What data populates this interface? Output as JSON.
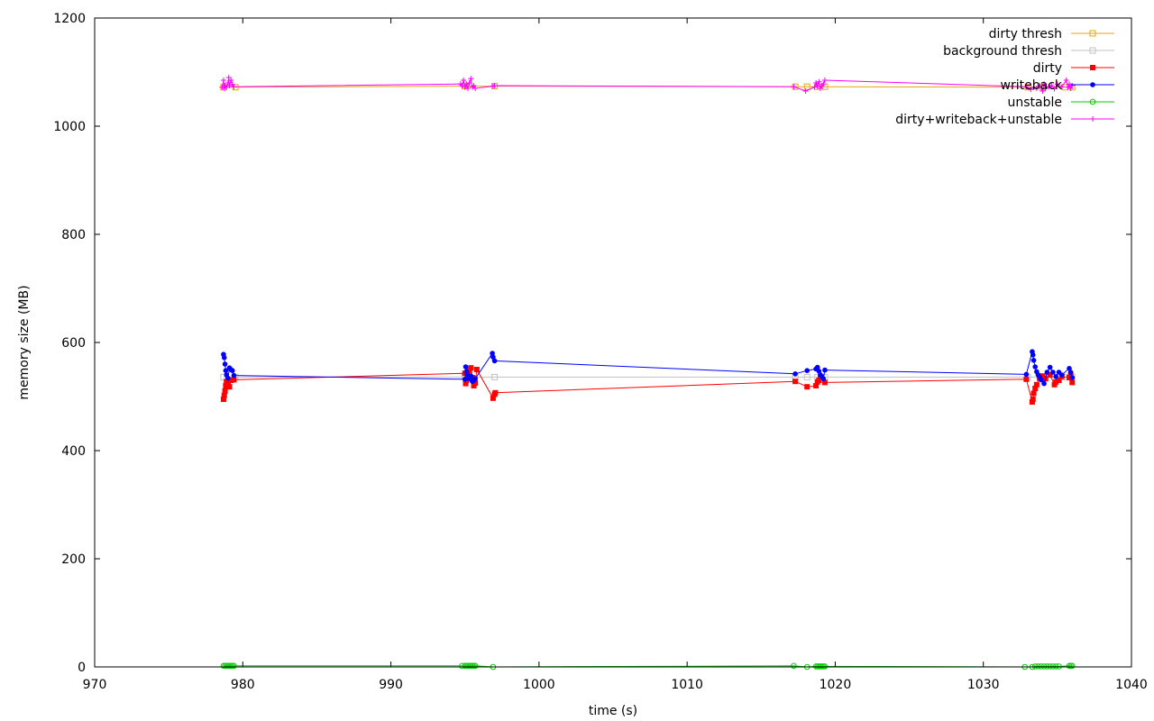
{
  "chart_data": {
    "type": "line",
    "xlabel": "time (s)",
    "ylabel": "memory size (MB)",
    "xlim": [
      970,
      1040
    ],
    "ylim": [
      0,
      1200
    ],
    "xticks": [
      970,
      980,
      990,
      1000,
      1010,
      1020,
      1030,
      1040
    ],
    "yticks": [
      0,
      200,
      400,
      600,
      800,
      1000,
      1200
    ],
    "grid": false,
    "legend_position": "top-right",
    "series": [
      {
        "name": "dirty thresh",
        "color": "#e6a317",
        "marker": "square-open",
        "points": [
          [
            978.7,
            1072
          ],
          [
            979.5,
            1072
          ],
          [
            995,
            1074
          ],
          [
            997,
            1074
          ],
          [
            1017.3,
            1073
          ],
          [
            1018.1,
            1073
          ],
          [
            1018.8,
            1073
          ],
          [
            1019.3,
            1073
          ],
          [
            1033,
            1072
          ],
          [
            1034,
            1072
          ],
          [
            1035.5,
            1072
          ],
          [
            1036,
            1072
          ]
        ]
      },
      {
        "name": "background thresh",
        "color": "#c0c0c0",
        "marker": "square-open",
        "points": [
          [
            978.7,
            536
          ],
          [
            979.5,
            536
          ],
          [
            995,
            536
          ],
          [
            997,
            536
          ],
          [
            1017.3,
            536
          ],
          [
            1018.1,
            536
          ],
          [
            1018.8,
            536
          ],
          [
            1019.3,
            536
          ],
          [
            1033,
            536
          ],
          [
            1034,
            536
          ],
          [
            1035.5,
            536
          ],
          [
            1036,
            536
          ]
        ]
      },
      {
        "name": "dirty",
        "color": "#ff0000",
        "marker": "square",
        "points": [
          [
            978.7,
            495
          ],
          [
            978.75,
            502
          ],
          [
            978.8,
            510
          ],
          [
            978.85,
            520
          ],
          [
            978.9,
            528
          ],
          [
            979.0,
            524
          ],
          [
            979.1,
            518
          ],
          [
            979.2,
            530
          ],
          [
            979.4,
            531
          ],
          [
            995,
            543
          ],
          [
            995.05,
            524
          ],
          [
            995.1,
            530
          ],
          [
            995.2,
            537
          ],
          [
            995.3,
            548
          ],
          [
            995.4,
            553
          ],
          [
            995.5,
            535
          ],
          [
            995.6,
            520
          ],
          [
            995.7,
            525
          ],
          [
            995.8,
            550
          ],
          [
            996.9,
            497
          ],
          [
            997.0,
            504
          ],
          [
            997.05,
            507
          ],
          [
            1017.3,
            528
          ],
          [
            1018.1,
            518
          ],
          [
            1018.7,
            520
          ],
          [
            1018.8,
            527
          ],
          [
            1018.9,
            530
          ],
          [
            1019.0,
            535
          ],
          [
            1019.3,
            526
          ],
          [
            1032.9,
            532
          ],
          [
            1033.3,
            490
          ],
          [
            1033.35,
            495
          ],
          [
            1033.4,
            506
          ],
          [
            1033.5,
            515
          ],
          [
            1033.6,
            522
          ],
          [
            1033.8,
            534
          ],
          [
            1034.0,
            538
          ],
          [
            1034.2,
            533
          ],
          [
            1034.5,
            540
          ],
          [
            1034.8,
            522
          ],
          [
            1034.9,
            527
          ],
          [
            1035.1,
            530
          ],
          [
            1035.3,
            537
          ],
          [
            1035.8,
            535
          ],
          [
            1035.9,
            540
          ],
          [
            1036.0,
            526
          ]
        ]
      },
      {
        "name": "writeback",
        "color": "#0000ff",
        "marker": "circle",
        "points": [
          [
            978.7,
            578
          ],
          [
            978.75,
            572
          ],
          [
            978.8,
            560
          ],
          [
            978.85,
            548
          ],
          [
            978.9,
            540
          ],
          [
            979.0,
            534
          ],
          [
            979.1,
            553
          ],
          [
            979.2,
            550
          ],
          [
            979.3,
            548
          ],
          [
            979.4,
            539
          ],
          [
            995,
            532
          ],
          [
            995.05,
            555
          ],
          [
            995.1,
            546
          ],
          [
            995.2,
            540
          ],
          [
            995.3,
            533
          ],
          [
            995.4,
            538
          ],
          [
            995.5,
            528
          ],
          [
            995.6,
            530
          ],
          [
            995.7,
            533
          ],
          [
            996.85,
            580
          ],
          [
            996.9,
            573
          ],
          [
            997.0,
            566
          ],
          [
            1017.3,
            542
          ],
          [
            1018.1,
            548
          ],
          [
            1018.7,
            551
          ],
          [
            1018.8,
            554
          ],
          [
            1018.9,
            547
          ],
          [
            1019.0,
            540
          ],
          [
            1019.1,
            537
          ],
          [
            1019.2,
            533
          ],
          [
            1019.3,
            549
          ],
          [
            1032.9,
            541
          ],
          [
            1033.3,
            583
          ],
          [
            1033.35,
            577
          ],
          [
            1033.4,
            567
          ],
          [
            1033.5,
            555
          ],
          [
            1033.6,
            546
          ],
          [
            1033.7,
            540
          ],
          [
            1033.8,
            536
          ],
          [
            1033.9,
            531
          ],
          [
            1034.1,
            524
          ],
          [
            1034.3,
            545
          ],
          [
            1034.5,
            554
          ],
          [
            1034.7,
            545
          ],
          [
            1034.9,
            537
          ],
          [
            1035.1,
            545
          ],
          [
            1035.3,
            540
          ],
          [
            1035.8,
            552
          ],
          [
            1035.9,
            545
          ],
          [
            1036.0,
            535
          ]
        ]
      },
      {
        "name": "unstable",
        "color": "#00cc00",
        "marker": "circle-open",
        "points": [
          [
            978.7,
            2
          ],
          [
            978.8,
            2
          ],
          [
            978.9,
            2
          ],
          [
            979.0,
            2
          ],
          [
            979.1,
            2
          ],
          [
            979.2,
            2
          ],
          [
            979.3,
            2
          ],
          [
            979.4,
            2
          ],
          [
            994.8,
            2
          ],
          [
            995,
            2
          ],
          [
            995.1,
            2
          ],
          [
            995.2,
            2
          ],
          [
            995.3,
            2
          ],
          [
            995.4,
            2
          ],
          [
            995.5,
            2
          ],
          [
            995.6,
            2
          ],
          [
            995.7,
            2
          ],
          [
            996.9,
            0
          ],
          [
            1017.2,
            2
          ],
          [
            1018.1,
            0
          ],
          [
            1018.7,
            1
          ],
          [
            1018.8,
            1
          ],
          [
            1018.9,
            1
          ],
          [
            1019.0,
            1
          ],
          [
            1019.1,
            1
          ],
          [
            1019.2,
            1
          ],
          [
            1019.3,
            1
          ],
          [
            1032.8,
            0
          ],
          [
            1033.3,
            0
          ],
          [
            1033.5,
            1
          ],
          [
            1033.7,
            1
          ],
          [
            1033.9,
            1
          ],
          [
            1034.1,
            1
          ],
          [
            1034.3,
            1
          ],
          [
            1034.5,
            1
          ],
          [
            1034.7,
            1
          ],
          [
            1034.9,
            1
          ],
          [
            1035.1,
            1
          ],
          [
            1035.8,
            2
          ],
          [
            1035.9,
            2
          ],
          [
            1036.0,
            2
          ]
        ]
      },
      {
        "name": "dirty+writeback+unstable",
        "color": "#ff00ff",
        "marker": "plus",
        "points": [
          [
            978.6,
            1072
          ],
          [
            978.7,
            1085
          ],
          [
            978.75,
            1070
          ],
          [
            978.8,
            1075
          ],
          [
            978.9,
            1072
          ],
          [
            979.0,
            1080
          ],
          [
            979.05,
            1090
          ],
          [
            979.1,
            1075
          ],
          [
            979.2,
            1085
          ],
          [
            979.3,
            1077
          ],
          [
            979.4,
            1073
          ],
          [
            994.7,
            1078
          ],
          [
            994.8,
            1075
          ],
          [
            994.9,
            1085
          ],
          [
            995.0,
            1072
          ],
          [
            995.1,
            1078
          ],
          [
            995.2,
            1070
          ],
          [
            995.3,
            1080
          ],
          [
            995.4,
            1088
          ],
          [
            995.5,
            1072
          ],
          [
            995.6,
            1075
          ],
          [
            995.7,
            1070
          ],
          [
            996.9,
            1074
          ],
          [
            997.0,
            1075
          ],
          [
            1017.2,
            1073
          ],
          [
            1018.0,
            1065
          ],
          [
            1018.6,
            1072
          ],
          [
            1018.7,
            1080
          ],
          [
            1018.8,
            1074
          ],
          [
            1018.9,
            1082
          ],
          [
            1019.0,
            1070
          ],
          [
            1019.1,
            1075
          ],
          [
            1019.2,
            1078
          ],
          [
            1019.3,
            1085
          ],
          [
            1032.9,
            1073
          ],
          [
            1033.2,
            1068
          ],
          [
            1033.4,
            1072
          ],
          [
            1033.6,
            1070
          ],
          [
            1033.8,
            1075
          ],
          [
            1034.0,
            1065
          ],
          [
            1034.1,
            1078
          ],
          [
            1034.2,
            1070
          ],
          [
            1034.4,
            1073
          ],
          [
            1034.6,
            1075
          ],
          [
            1034.8,
            1069
          ],
          [
            1035.0,
            1078
          ],
          [
            1035.3,
            1073
          ],
          [
            1035.6,
            1085
          ],
          [
            1035.7,
            1072
          ],
          [
            1035.8,
            1078
          ],
          [
            1035.9,
            1070
          ],
          [
            1036.0,
            1075
          ]
        ]
      }
    ]
  }
}
